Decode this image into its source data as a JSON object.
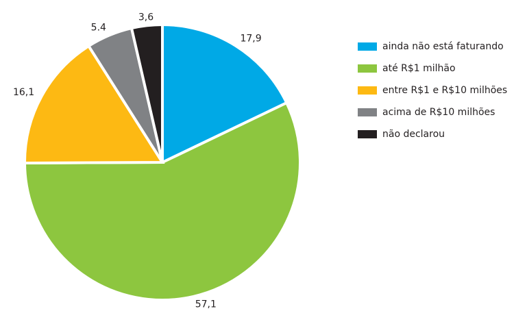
{
  "chart_data": {
    "type": "pie",
    "categories": [
      "ainda não está faturando",
      "até R$1 milhão",
      "entre R$1 e R$10 milhões",
      "acima de R$10 milhões",
      "não declarou"
    ],
    "values": [
      17.9,
      57.1,
      16.1,
      5.4,
      3.6
    ],
    "value_labels": [
      "17,9",
      "57,1",
      "16,1",
      "5.4",
      "3,6"
    ],
    "colors": [
      "#00a9e6",
      "#8dc63f",
      "#fdb913",
      "#808285",
      "#231f20"
    ],
    "legend": "right"
  }
}
